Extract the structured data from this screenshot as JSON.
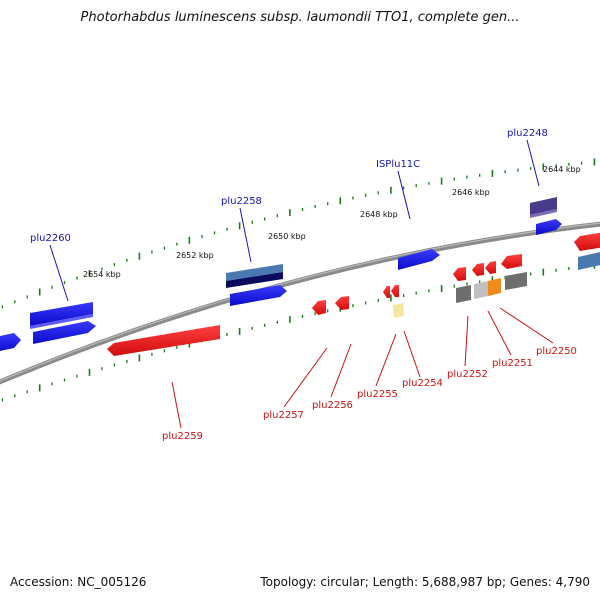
{
  "title": "Photorhabdus luminescens subsp. laumondii TTO1, complete gen...",
  "footer": {
    "accession": "Accession: NC_005126",
    "summary": "Topology: circular; Length: 5,688,987 bp; Genes: 4,790"
  },
  "colors": {
    "backbone": "#8a8a8a",
    "tick": "#1a7a1a",
    "forward_gene": "#1e1ee6",
    "reverse_gene": "#ee1b1b",
    "label_forward": "#1616b8",
    "label_reverse": "#c81212",
    "mobile_element": "#4a3a8a",
    "grey_feature": "#6e6e6e",
    "orange_feature": "#f08a1a",
    "pale_yellow_feature": "#f2e6a0",
    "steel_blue_feature": "#4a78b0"
  },
  "coordinate_labels": [
    "2654 kbp",
    "2652 kbp",
    "2650 kbp",
    "2648 kbp",
    "2646 kbp",
    "2644 kbp"
  ],
  "forward_labels": [
    "plu2260",
    "plu2258",
    "ISPlu11C",
    "plu2248"
  ],
  "reverse_labels": [
    "plu2259",
    "plu2257",
    "plu2256",
    "plu2255",
    "plu2254",
    "plu2252",
    "plu2251",
    "plu2250"
  ]
}
